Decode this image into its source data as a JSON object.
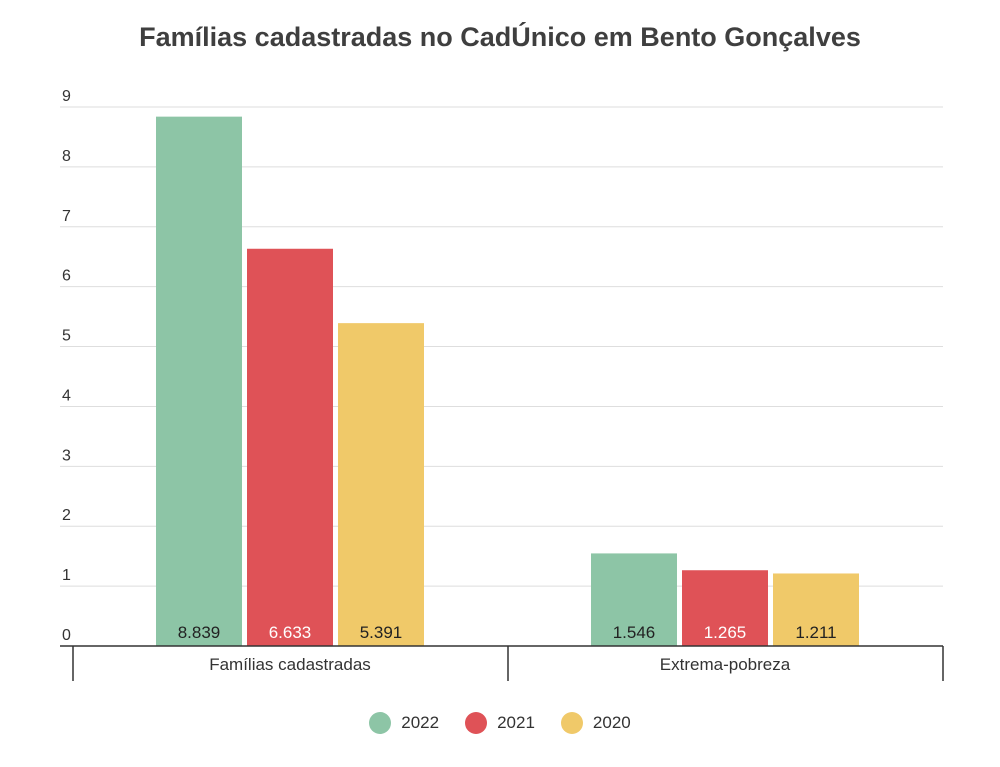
{
  "chart_data": {
    "type": "bar",
    "title": "Famílias cadastradas no CadÚnico em Bento Gonçalves",
    "categories": [
      "Famílias cadastradas",
      "Extrema-pobreza"
    ],
    "series": [
      {
        "name": "2022",
        "color": "#8dc5a6",
        "values": [
          8.839,
          1.546
        ],
        "labels": [
          "8.839",
          "1.546"
        ],
        "label_color": "#222222"
      },
      {
        "name": "2021",
        "color": "#df5257",
        "values": [
          6.633,
          1.265
        ],
        "labels": [
          "6.633",
          "1.265"
        ],
        "label_color": "#ffffff"
      },
      {
        "name": "2020",
        "color": "#f0c969",
        "values": [
          5.391,
          1.211
        ],
        "labels": [
          "5.391",
          "1.211"
        ],
        "label_color": "#222222"
      }
    ],
    "ylim": [
      0,
      9
    ],
    "yticks": [
      "0",
      "1",
      "2",
      "3",
      "4",
      "5",
      "6",
      "7",
      "8",
      "9"
    ],
    "grid": true,
    "legend_position": "bottom"
  }
}
